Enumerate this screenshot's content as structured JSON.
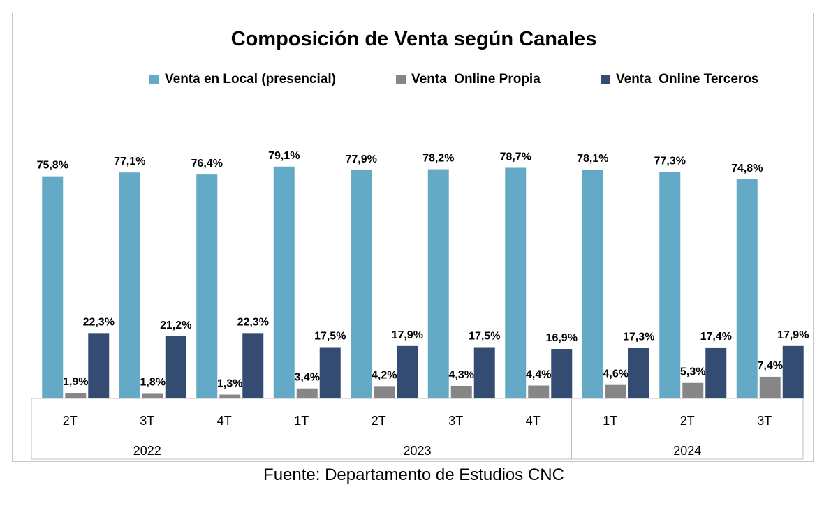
{
  "chart_data": {
    "type": "bar",
    "title": "Composición de Venta según Canales",
    "source": "Fuente: Departamento de Estudios CNC",
    "categories": [
      "2T",
      "3T",
      "4T",
      "1T",
      "2T",
      "3T",
      "4T",
      "1T",
      "2T",
      "3T"
    ],
    "groups": [
      {
        "label": "2022",
        "count": 3
      },
      {
        "label": "2023",
        "count": 4
      },
      {
        "label": "2024",
        "count": 3
      }
    ],
    "series": [
      {
        "name": "Venta en Local (presencial)",
        "color": "#64AAC6",
        "values": [
          75.8,
          77.1,
          76.4,
          79.1,
          77.9,
          78.2,
          78.7,
          78.1,
          77.3,
          74.8
        ],
        "labels": [
          "75,8%",
          "77,1%",
          "76,4%",
          "79,1%",
          "77,9%",
          "78,2%",
          "78,7%",
          "78,1%",
          "77,3%",
          "74,8%"
        ]
      },
      {
        "name": "Venta  Online Propia",
        "color": "#868686",
        "values": [
          1.9,
          1.8,
          1.3,
          3.4,
          4.2,
          4.3,
          4.4,
          4.6,
          5.3,
          7.4
        ],
        "labels": [
          "1,9%",
          "1,8%",
          "1,3%",
          "3,4%",
          "4,2%",
          "4,3%",
          "4,4%",
          "4,6%",
          "5,3%",
          "7,4%"
        ]
      },
      {
        "name": "Venta  Online Terceros",
        "color": "#344C72",
        "values": [
          22.3,
          21.2,
          22.3,
          17.5,
          17.9,
          17.5,
          16.9,
          17.3,
          17.4,
          17.9
        ],
        "labels": [
          "22,3%",
          "21,2%",
          "22,3%",
          "17,5%",
          "17,9%",
          "17,5%",
          "16,9%",
          "17,3%",
          "17,4%",
          "17,9%"
        ]
      }
    ],
    "legend_position": "top",
    "grid": false,
    "ylim": [
      0,
      100
    ]
  }
}
